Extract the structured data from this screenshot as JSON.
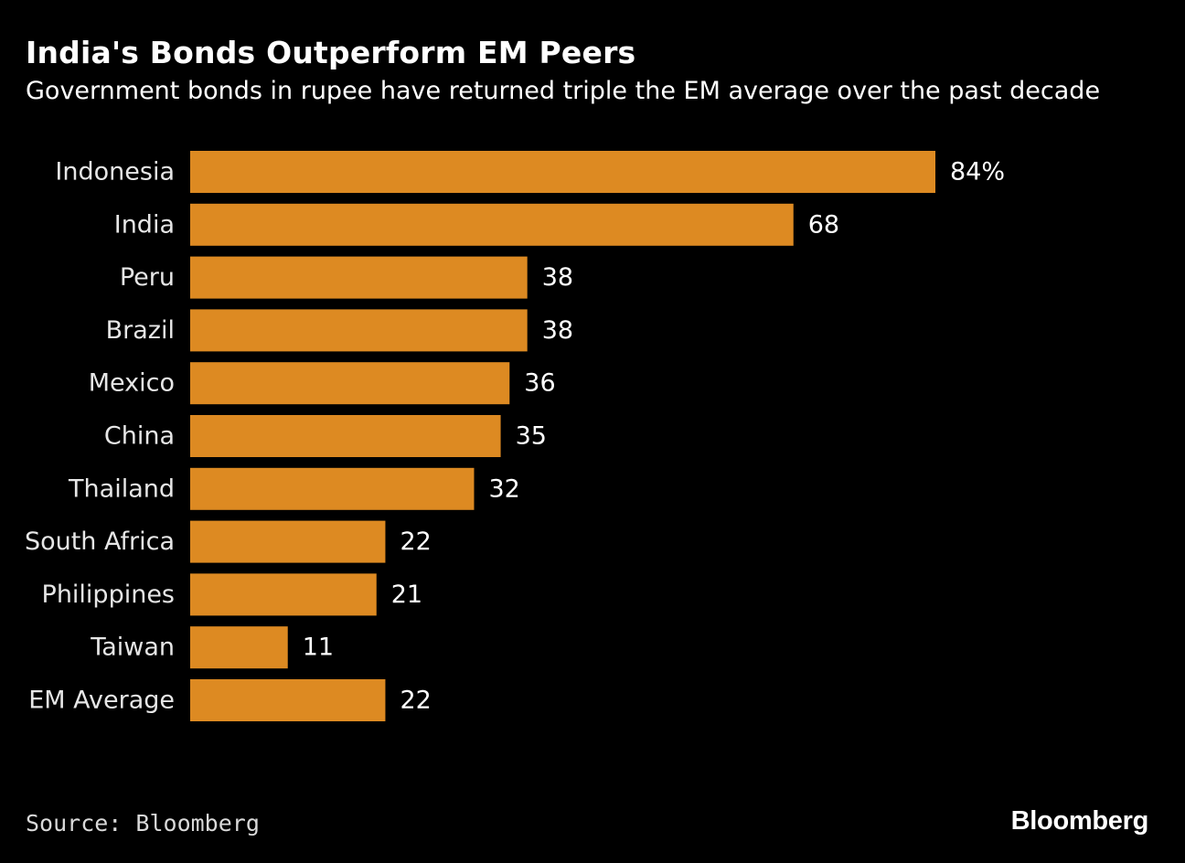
{
  "chart_data": {
    "type": "bar",
    "orientation": "horizontal",
    "title": "India's Bonds Outperform EM Peers",
    "subtitle": "Government bonds in rupee have returned triple the EM average over the past decade",
    "categories": [
      "Indonesia",
      "India",
      "Peru",
      "Brazil",
      "Mexico",
      "China",
      "Thailand",
      "South Africa",
      "Philippines",
      "Taiwan",
      "EM Average"
    ],
    "values": [
      84,
      68,
      38,
      38,
      36,
      35,
      32,
      22,
      21,
      11,
      22
    ],
    "value_labels": [
      "84%",
      "68",
      "38",
      "38",
      "36",
      "35",
      "32",
      "22",
      "21",
      "11",
      "22"
    ],
    "xlim": [
      0,
      84
    ],
    "xlabel": "",
    "ylabel": "",
    "grid": false,
    "bar_color": "#dd8a22"
  },
  "footer": {
    "source": "Source: Bloomberg",
    "logo_text": "Bloomberg"
  }
}
